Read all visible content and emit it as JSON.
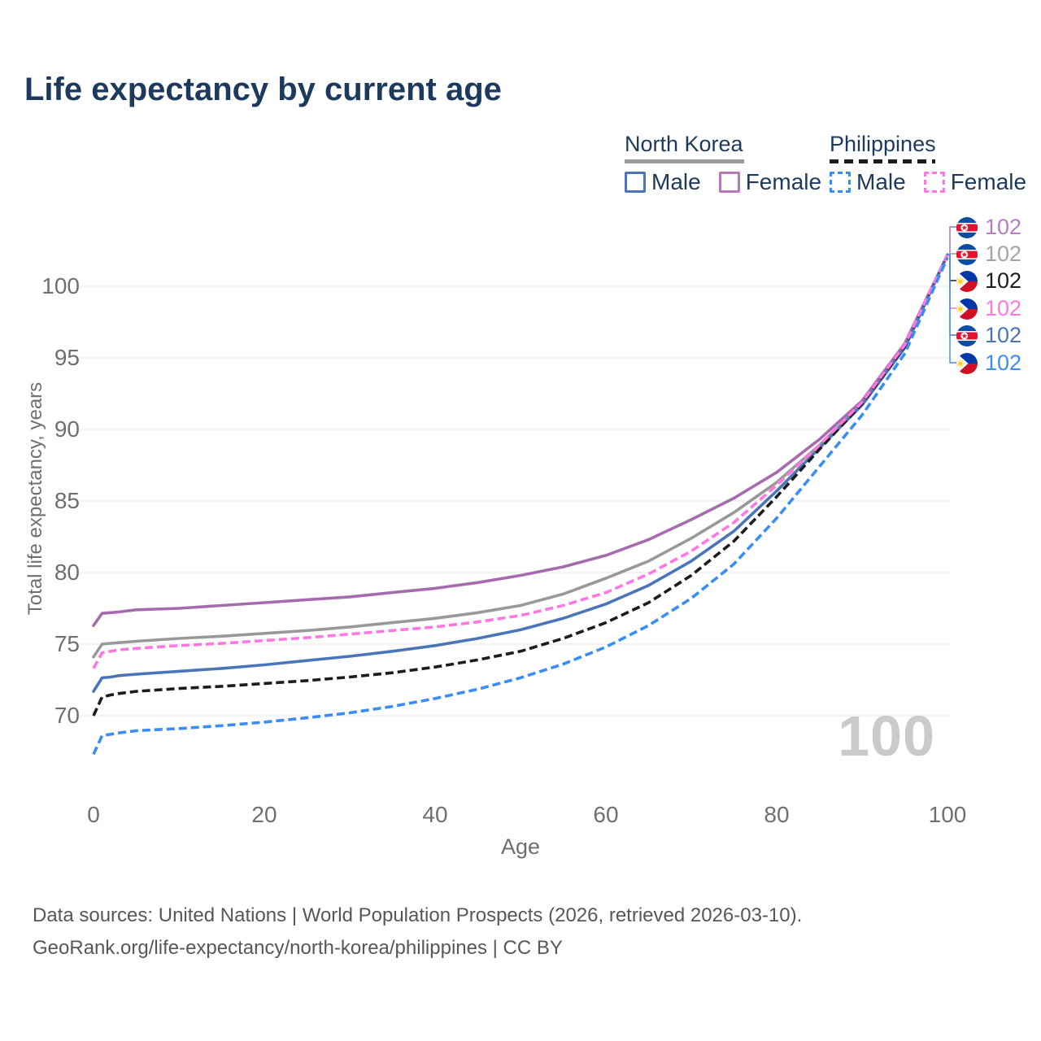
{
  "page": {
    "title": "Life expectancy by current age",
    "footer_line1": "Data sources: United Nations | World Population Prospects (2026, retrieved 2026-03-10).",
    "footer_line2": "GeoRank.org/life-expectancy/north-korea/philippines | CC BY"
  },
  "legend": {
    "groups": [
      {
        "title": "North Korea",
        "underline": "solid",
        "underline_color": "#9b9b9b",
        "items": [
          {
            "label": "Male",
            "color": "#4a76b9",
            "dashed": false
          },
          {
            "label": "Female",
            "color": "#b778b7",
            "dashed": false
          }
        ]
      },
      {
        "title": "Philippines",
        "underline": "dashed",
        "underline_color": "#1c1c1c",
        "items": [
          {
            "label": "Male",
            "color": "#3b8df6",
            "dashed": true
          },
          {
            "label": "Female",
            "color": "#ff77e3",
            "dashed": true
          }
        ]
      }
    ]
  },
  "chart_data": {
    "type": "line",
    "title": "Life expectancy by current age",
    "xlabel": "Age",
    "ylabel": "Total life expectancy, years",
    "x_ticks": [
      0,
      20,
      40,
      60,
      80,
      100
    ],
    "y_ticks": [
      100,
      95,
      90,
      85,
      80,
      75,
      70
    ],
    "xlim": [
      0,
      100
    ],
    "ylim": [
      66,
      103
    ],
    "grid": "horizontal",
    "legend_position": "top-right",
    "hover_age_watermark": "100",
    "ages": [
      0,
      1,
      2,
      3,
      5,
      10,
      15,
      20,
      25,
      30,
      35,
      40,
      45,
      50,
      55,
      60,
      65,
      70,
      75,
      80,
      85,
      90,
      95,
      100
    ],
    "series": [
      {
        "id": "nk-total",
        "name": "North Korea — Both sexes",
        "country": "North Korea",
        "sex": "Both",
        "color": "#999999",
        "dashed": false,
        "values": [
          74.1,
          75.0,
          75.05,
          75.1,
          75.2,
          75.4,
          75.55,
          75.75,
          75.95,
          76.2,
          76.5,
          76.8,
          77.2,
          77.7,
          78.5,
          79.6,
          80.8,
          82.4,
          84.2,
          86.3,
          88.9,
          91.8,
          95.8,
          102.2
        ]
      },
      {
        "id": "nk-female",
        "name": "North Korea — Female",
        "country": "North Korea",
        "sex": "Female",
        "color": "#a66bae",
        "dashed": false,
        "values": [
          76.3,
          77.15,
          77.2,
          77.25,
          77.4,
          77.5,
          77.7,
          77.9,
          78.1,
          78.3,
          78.6,
          78.9,
          79.3,
          79.8,
          80.4,
          81.2,
          82.3,
          83.7,
          85.2,
          87.0,
          89.3,
          92.0,
          96.0,
          102.2
        ]
      },
      {
        "id": "nk-male",
        "name": "North Korea — Male",
        "country": "North Korea",
        "sex": "Male",
        "color": "#4a76b9",
        "dashed": false,
        "values": [
          71.7,
          72.65,
          72.7,
          72.8,
          72.9,
          73.1,
          73.3,
          73.55,
          73.85,
          74.15,
          74.5,
          74.9,
          75.4,
          76.0,
          76.8,
          77.8,
          79.1,
          80.8,
          82.9,
          85.7,
          88.7,
          91.7,
          95.7,
          102.2
        ]
      },
      {
        "id": "ph-total",
        "name": "Philippines — Both sexes",
        "country": "Philippines",
        "sex": "Both",
        "color": "#1c1c1c",
        "dashed": true,
        "values": [
          70.0,
          71.3,
          71.45,
          71.55,
          71.7,
          71.9,
          72.05,
          72.25,
          72.45,
          72.7,
          73.0,
          73.4,
          73.9,
          74.5,
          75.4,
          76.5,
          77.9,
          79.8,
          82.2,
          85.3,
          88.6,
          91.8,
          95.8,
          102.2
        ]
      },
      {
        "id": "ph-female",
        "name": "Philippines — Female",
        "country": "Philippines",
        "sex": "Female",
        "color": "#ff77e3",
        "dashed": true,
        "values": [
          73.3,
          74.4,
          74.5,
          74.6,
          74.7,
          74.9,
          75.05,
          75.25,
          75.45,
          75.7,
          75.95,
          76.2,
          76.55,
          77.0,
          77.7,
          78.6,
          79.9,
          81.5,
          83.5,
          86.1,
          88.9,
          91.9,
          95.9,
          102.2
        ]
      },
      {
        "id": "ph-male",
        "name": "Philippines — Male",
        "country": "Philippines",
        "sex": "Male",
        "color": "#3b8df6",
        "dashed": true,
        "values": [
          67.3,
          68.6,
          68.7,
          68.8,
          68.95,
          69.1,
          69.3,
          69.55,
          69.85,
          70.2,
          70.65,
          71.2,
          71.85,
          72.65,
          73.6,
          74.8,
          76.3,
          78.2,
          80.6,
          83.8,
          87.4,
          91.0,
          95.3,
          102.0
        ]
      }
    ],
    "end_labels": [
      {
        "series": "nk-female",
        "flag": "north-korea",
        "value": "102",
        "color": "#b77dc1"
      },
      {
        "series": "nk-total",
        "flag": "north-korea",
        "value": "102",
        "color": "#a4a4a4"
      },
      {
        "series": "ph-total",
        "flag": "philippines",
        "value": "102",
        "color": "#1c1c1c"
      },
      {
        "series": "ph-female",
        "flag": "philippines",
        "value": "102",
        "color": "#ff77e3"
      },
      {
        "series": "nk-male",
        "flag": "north-korea",
        "value": "102",
        "color": "#4a76b9"
      },
      {
        "series": "ph-male",
        "flag": "philippines",
        "value": "102",
        "color": "#3b8df6"
      }
    ]
  }
}
